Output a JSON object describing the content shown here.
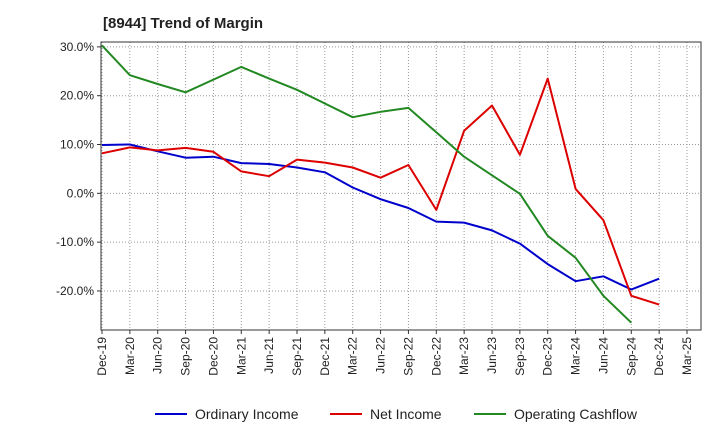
{
  "chart_data": {
    "type": "line",
    "title": "[8944]  Trend of Margin",
    "xlabel": "",
    "ylabel": "",
    "ylim": [
      -28,
      31
    ],
    "y_ticks": [
      30,
      20,
      10,
      0,
      -10,
      -20
    ],
    "y_tick_labels": [
      "30.0%",
      "20.0%",
      "10.0%",
      "0.0%",
      "-10.0%",
      "-20.0%"
    ],
    "x_tick_labels": [
      "Dec-19",
      "Mar-20",
      "Jun-20",
      "Sep-20",
      "Dec-20",
      "Mar-21",
      "Jun-21",
      "Sep-21",
      "Dec-21",
      "Mar-22",
      "Jun-22",
      "Sep-22",
      "Dec-22",
      "Mar-23",
      "Jun-23",
      "Sep-23",
      "Dec-23",
      "Mar-24",
      "Jun-24",
      "Sep-24",
      "Dec-24",
      "Mar-25"
    ],
    "grid": true,
    "legend_position": "bottom",
    "series": [
      {
        "name": "Ordinary Income",
        "color": "#0000cc",
        "values": [
          9.9,
          10.0,
          8.6,
          7.3,
          7.5,
          6.2,
          6.0,
          5.3,
          4.3,
          1.2,
          -1.2,
          -3.0,
          -5.8,
          -6.0,
          -7.6,
          -10.3,
          -14.5,
          -18.0,
          -17.0,
          -19.7,
          -17.5,
          null
        ]
      },
      {
        "name": "Net Income",
        "color": "#dd0000",
        "values": [
          8.2,
          9.4,
          8.8,
          9.3,
          8.5,
          4.5,
          3.5,
          6.9,
          6.3,
          5.3,
          3.2,
          5.8,
          -3.4,
          12.8,
          18.0,
          7.9,
          23.5,
          0.9,
          -5.5,
          -21.0,
          -22.8,
          null
        ]
      },
      {
        "name": "Operating Cashflow",
        "color": "#228822",
        "values": [
          30.3,
          24.2,
          22.4,
          20.7,
          23.3,
          25.9,
          23.5,
          21.2,
          18.4,
          15.6,
          16.7,
          17.5,
          12.5,
          7.5,
          3.7,
          -0.1,
          -8.7,
          -13.2,
          -21.0,
          -26.5,
          null,
          null
        ]
      }
    ]
  }
}
